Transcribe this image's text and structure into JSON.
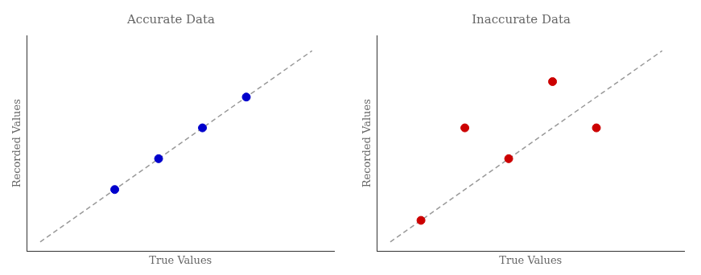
{
  "chart_data": [
    {
      "type": "scatter",
      "title": "Accurate Data",
      "xlabel": "True Values",
      "ylabel": "Recorded Values",
      "xlim": [
        0,
        7
      ],
      "ylim": [
        0,
        7
      ],
      "tick_labels": false,
      "grid": false,
      "series": [
        {
          "type": "scatter",
          "marker": "circle",
          "color": "#0000cc",
          "x": [
            2,
            3,
            4,
            5
          ],
          "values": [
            2,
            3,
            4,
            5
          ]
        },
        {
          "type": "line",
          "line_style": "dashed",
          "color": "#999999",
          "x": [
            0.3,
            6.5
          ],
          "values": [
            0.3,
            6.5
          ]
        }
      ]
    },
    {
      "type": "scatter",
      "title": "Inaccurate Data",
      "xlabel": "True Values",
      "ylabel": "Recorded Values",
      "xlim": [
        0,
        7
      ],
      "ylim": [
        0,
        7
      ],
      "tick_labels": false,
      "grid": false,
      "series": [
        {
          "type": "scatter",
          "marker": "circle",
          "color": "#cc0000",
          "x": [
            1,
            2,
            3,
            4,
            5
          ],
          "values": [
            1,
            4,
            3,
            5.5,
            4
          ]
        },
        {
          "type": "line",
          "line_style": "dashed",
          "color": "#999999",
          "x": [
            0.3,
            6.5
          ],
          "values": [
            0.3,
            6.5
          ]
        }
      ]
    }
  ]
}
